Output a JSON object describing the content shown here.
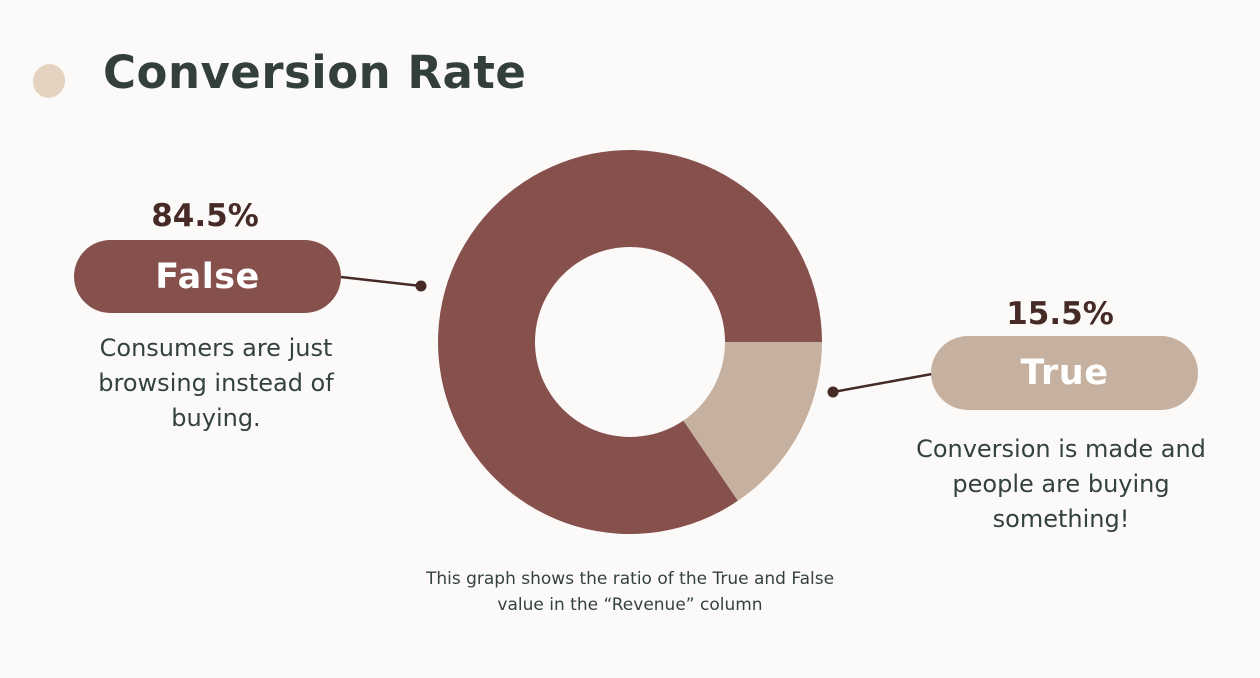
{
  "title": "Conversion Rate",
  "colors": {
    "false_segment": "#86514d",
    "true_segment": "#c6b09f",
    "hole": "#fcfaf9",
    "connector": "#452a26",
    "bullet": "#e5d2c0"
  },
  "chart_data": {
    "type": "pie",
    "donut": true,
    "categories": [
      "False",
      "True"
    ],
    "values": [
      84.5,
      15.5
    ],
    "value_labels": [
      "84.5%",
      "15.5%"
    ],
    "descriptions": [
      "Consumers are just browsing instead of buying.",
      "Conversion is made and people are buying something!"
    ],
    "note": "This graph shows the ratio of the True and False value in the “Revenue” column"
  }
}
